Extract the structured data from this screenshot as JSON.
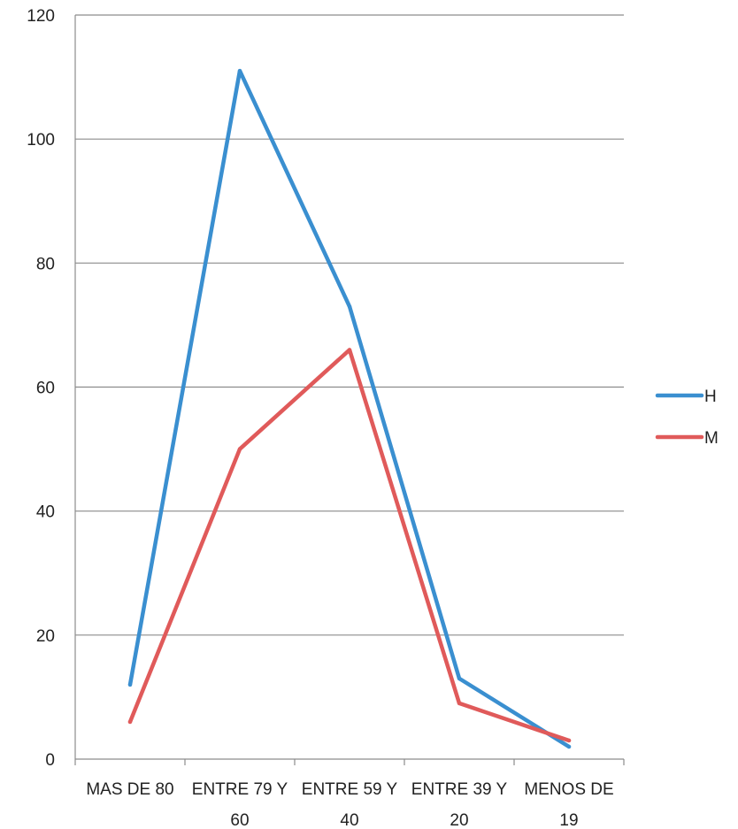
{
  "chart_data": {
    "type": "line",
    "categories": [
      [
        "MAS DE 80"
      ],
      [
        "ENTRE 79 Y",
        "60"
      ],
      [
        "ENTRE 59 Y",
        "40"
      ],
      [
        "ENTRE 39 Y",
        "20"
      ],
      [
        "MENOS DE",
        "19"
      ]
    ],
    "series": [
      {
        "name": "H",
        "color": "#3a8fd0",
        "values": [
          12,
          111,
          73,
          13,
          2
        ]
      },
      {
        "name": "M",
        "color": "#e05a5a",
        "values": [
          6,
          50,
          66,
          9,
          3
        ]
      }
    ],
    "ylim": [
      0,
      120
    ],
    "yticks": [
      0,
      20,
      40,
      60,
      80,
      100,
      120
    ],
    "grid": true,
    "legend": "right",
    "title": "",
    "xlabel": "",
    "ylabel": ""
  }
}
